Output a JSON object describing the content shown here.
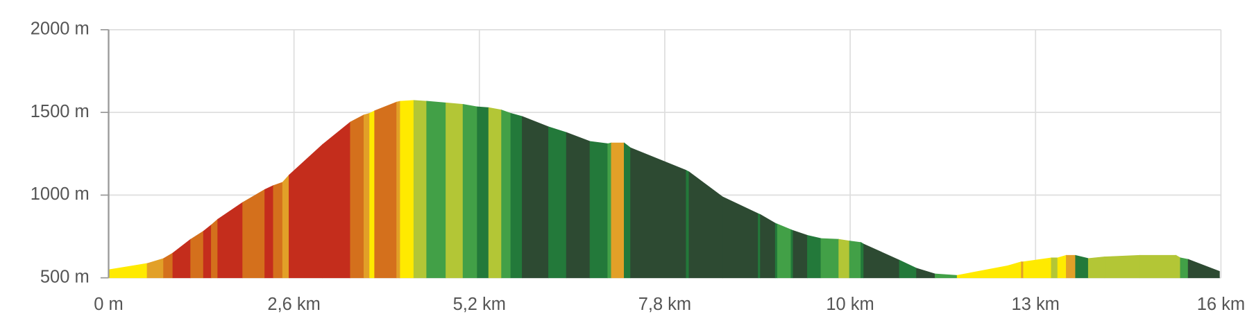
{
  "chart_data": {
    "type": "area",
    "x": [
      0,
      0.54,
      0.77,
      0.9,
      1.15,
      1.33,
      1.44,
      1.53,
      1.88,
      2.19,
      2.31,
      2.44,
      2.53,
      3.0,
      3.39,
      3.58,
      3.66,
      3.73,
      4.04,
      4.09,
      4.28,
      4.46,
      4.73,
      4.97,
      5.17,
      5.33,
      5.51,
      5.64,
      5.8,
      6.17,
      6.42,
      6.75,
      7.0,
      7.05,
      7.23,
      7.32,
      8.1,
      8.14,
      8.61,
      9.11,
      9.14,
      9.35,
      9.38,
      9.57,
      9.6,
      9.8,
      9.99,
      10.24,
      10.39,
      10.55,
      10.59,
      11.09,
      11.33,
      11.59,
      11.9,
      12.61,
      12.8,
      12.83,
      13.22,
      13.31,
      13.43,
      13.56,
      13.74,
      13.97,
      14.46,
      14.97,
      15.03,
      15.14,
      15.58
    ],
    "values": [
      549,
      587,
      617,
      650,
      733,
      782,
      820,
      854,
      956,
      1034,
      1058,
      1078,
      1121,
      1306,
      1442,
      1485,
      1495,
      1510,
      1563,
      1568,
      1573,
      1568,
      1558,
      1549,
      1534,
      1529,
      1515,
      1495,
      1476,
      1413,
      1379,
      1325,
      1311,
      1316,
      1316,
      1286,
      1150,
      1141,
      990,
      888,
      883,
      830,
      825,
      791,
      786,
      757,
      738,
      733,
      723,
      714,
      704,
      607,
      558,
      524,
      515,
      573,
      597,
      597,
      621,
      621,
      636,
      636,
      617,
      627,
      636,
      636,
      621,
      612,
      539
    ],
    "colors": [
      "#ffea00",
      "#e2a028",
      "#d4701c",
      "#c42d1c",
      "#d4701c",
      "#c42d1c",
      "#d4701c",
      "#c42d1c",
      "#d4701c",
      "#c42d1c",
      "#d4701c",
      "#e2a028",
      "#c42d1c",
      "#c42d1c",
      "#d4701c",
      "#e2a028",
      "#ffea00",
      "#d4701c",
      "#e2a028",
      "#ffea00",
      "#b3c636",
      "#42a047",
      "#b3c636",
      "#42a047",
      "#23793a",
      "#b3c636",
      "#42a047",
      "#23793a",
      "#2d4a32",
      "#23793a",
      "#2d4a32",
      "#23793a",
      "#42a047",
      "#e2a028",
      "#23793a",
      "#2d4a32",
      "#23793a",
      "#2d4a32",
      "#2d4a32",
      "#23793a",
      "#2d4a32",
      "#23793a",
      "#42a047",
      "#23793a",
      "#2d4a32",
      "#23793a",
      "#42a047",
      "#b3c636",
      "#42a047",
      "#23793a",
      "#2d4a32",
      "#23793a",
      "#2d4a32",
      "#42a047",
      "#ffea00",
      "#ffea00",
      "#e2a028",
      "#ffea00",
      "#b3c636",
      "#ffea00",
      "#e2a028",
      "#23793a",
      "#b3c636",
      "#b3c636",
      "#b3c636",
      "#b3c636",
      "#42a047",
      "#2d4a32"
    ],
    "xlim": [
      0,
      15.6
    ],
    "xticks": [
      {
        "value": 0,
        "label": "0 m"
      },
      {
        "value": 2.6,
        "label": "2,6 km"
      },
      {
        "value": 5.2,
        "label": "5,2 km"
      },
      {
        "value": 7.8,
        "label": "7,8 km"
      },
      {
        "value": 10.4,
        "label": "10 km"
      },
      {
        "value": 13,
        "label": "13 km"
      },
      {
        "value": 15.6,
        "label": "16 km"
      }
    ],
    "ylim": [
      500,
      2000
    ],
    "yticks": [
      {
        "value": 500,
        "label": "500 m"
      },
      {
        "value": 1000,
        "label": "1000 m"
      },
      {
        "value": 1500,
        "label": "1500 m"
      },
      {
        "value": 2000,
        "label": "2000 m"
      }
    ],
    "grid": true
  }
}
